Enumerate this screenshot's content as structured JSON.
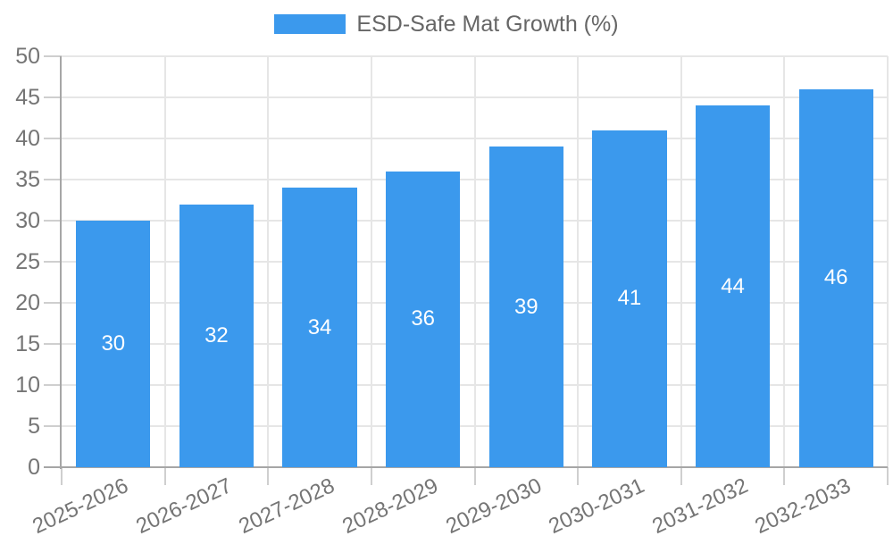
{
  "chart_data": {
    "type": "bar",
    "categories": [
      "2025-2026",
      "2026-2027",
      "2027-2028",
      "2028-2029",
      "2029-2030",
      "2030-2031",
      "2031-2032",
      "2032-2033"
    ],
    "series": [
      {
        "name": "ESD-Safe Mat Growth (%)",
        "values": [
          30,
          32,
          34,
          36,
          39,
          41,
          44,
          46
        ],
        "color": "#3b99ed"
      }
    ],
    "xlabel": "",
    "ylabel": "",
    "ylim": [
      0,
      50
    ],
    "y_ticks": [
      0,
      5,
      10,
      15,
      20,
      25,
      30,
      35,
      40,
      45,
      50
    ],
    "grid": "on",
    "legend_position": "top-center",
    "value_labels": {
      "position": "center-of-bar",
      "color": "#ffffff"
    },
    "style": {
      "background": "#ffffff",
      "axis_line": "#a6a6a6",
      "grid_line": "#e6e6e6",
      "tick_mark": "#cfcfcf",
      "tick_label_color": "#757575",
      "legend_text_color": "#666666"
    }
  }
}
